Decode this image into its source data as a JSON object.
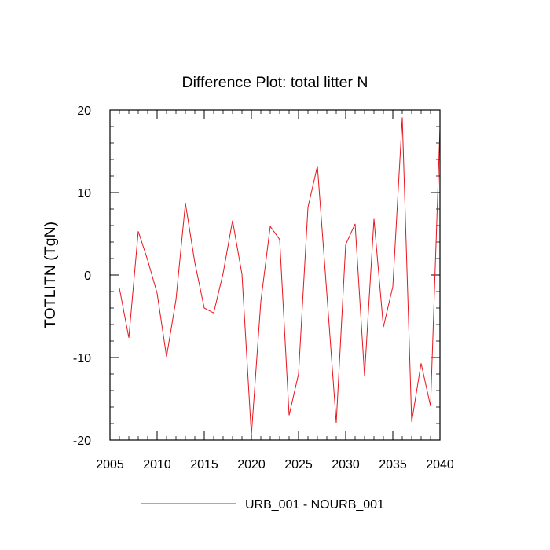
{
  "chart_data": {
    "type": "line",
    "title": "Difference Plot: total litter N",
    "xlabel": "",
    "ylabel": "TOTLITN  (TgN)",
    "xlim": [
      2005,
      2040
    ],
    "ylim": [
      -20,
      20
    ],
    "x_ticks": [
      2005,
      2010,
      2015,
      2020,
      2025,
      2030,
      2035,
      2040
    ],
    "y_ticks": [
      -20,
      -10,
      0,
      10,
      20
    ],
    "x_tick_labels": [
      "2005",
      "2010",
      "2015",
      "2020",
      "2025",
      "2030",
      "2035",
      "2040"
    ],
    "y_tick_labels": [
      "-20",
      "-10",
      "0",
      "10",
      "20"
    ],
    "grid": false,
    "legend_position": "bottom-center",
    "series": [
      {
        "name": "URB_001 - NOURB_001",
        "color": "#e8141c",
        "x": [
          2006,
          2007,
          2008,
          2009,
          2010,
          2011,
          2012,
          2013,
          2014,
          2015,
          2016,
          2017,
          2018,
          2019,
          2020,
          2021,
          2022,
          2023,
          2024,
          2025,
          2026,
          2027,
          2028,
          2029,
          2030,
          2031,
          2032,
          2033,
          2034,
          2035,
          2036,
          2037,
          2038,
          2039,
          2040
        ],
        "values": [
          -1.6,
          -7.6,
          5.3,
          1.8,
          -2.2,
          -9.9,
          -3.0,
          8.7,
          1.5,
          -4.0,
          -4.6,
          0.2,
          6.6,
          0.1,
          -19.4,
          -3.2,
          5.9,
          4.3,
          -17.0,
          -12.0,
          8.2,
          13.2,
          -2.2,
          -17.9,
          3.7,
          6.2,
          -12.2,
          6.8,
          -6.3,
          -1.4,
          19.1,
          -17.8,
          -10.7,
          -15.9,
          17.8
        ]
      }
    ]
  }
}
